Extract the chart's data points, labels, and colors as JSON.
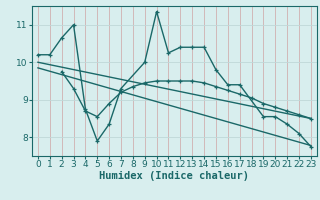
{
  "xlabel": "Humidex (Indice chaleur)",
  "bg_color": "#d8eeee",
  "grid_color": "#c0d8d8",
  "line_color": "#1a6868",
  "xlim": [
    -0.5,
    23.5
  ],
  "ylim": [
    7.5,
    11.5
  ],
  "yticks": [
    8,
    9,
    10,
    11
  ],
  "xticks": [
    0,
    1,
    2,
    3,
    4,
    5,
    6,
    7,
    8,
    9,
    10,
    11,
    12,
    13,
    14,
    15,
    16,
    17,
    18,
    19,
    20,
    21,
    22,
    23
  ],
  "line1_x": [
    0,
    1,
    2,
    3,
    4,
    5,
    6,
    7,
    9,
    10,
    11,
    12,
    13,
    14,
    15,
    16,
    17,
    19,
    20,
    21,
    22,
    23
  ],
  "line1_y": [
    10.2,
    10.2,
    10.65,
    11.0,
    8.75,
    7.9,
    8.35,
    9.3,
    10.0,
    11.35,
    10.25,
    10.4,
    10.4,
    10.4,
    9.8,
    9.4,
    9.4,
    8.55,
    8.55,
    8.35,
    8.1,
    7.75
  ],
  "line2_x": [
    2,
    3,
    4,
    5,
    6,
    7,
    8,
    9,
    10,
    11,
    12,
    13,
    14,
    15,
    16,
    17,
    18,
    19,
    20,
    21,
    22,
    23
  ],
  "line2_y": [
    9.75,
    9.3,
    8.7,
    8.55,
    8.9,
    9.2,
    9.35,
    9.45,
    9.5,
    9.5,
    9.5,
    9.5,
    9.45,
    9.35,
    9.25,
    9.15,
    9.05,
    8.9,
    8.8,
    8.7,
    8.6,
    8.5
  ],
  "trend1_x": [
    0,
    23
  ],
  "trend1_y": [
    10.0,
    8.5
  ],
  "trend2_x": [
    0,
    23
  ],
  "trend2_y": [
    9.85,
    7.78
  ],
  "tick_fontsize": 6.5,
  "label_fontsize": 7.5
}
